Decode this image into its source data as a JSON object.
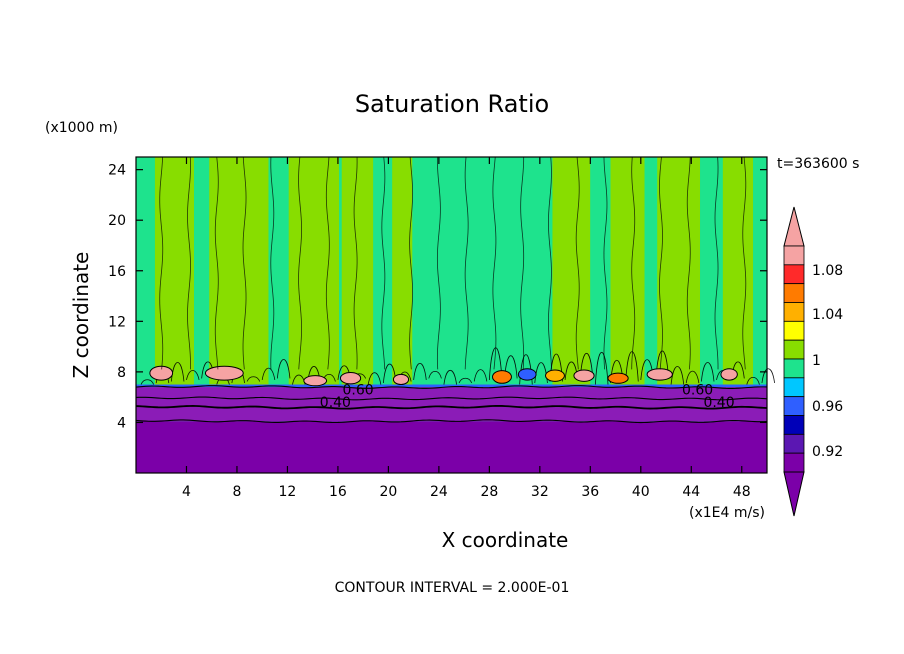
{
  "chart_data": {
    "type": "contour",
    "title": "Saturation Ratio",
    "xlabel": "X coordinate",
    "ylabel": "Z coordinate",
    "x_unit": "(x1E4 m/s)",
    "y_unit": "(x1000 m)",
    "time_label": "t=363600 s",
    "contour_interval_label": "CONTOUR INTERVAL = 2.000E-01",
    "xlim": [
      0,
      50
    ],
    "ylim": [
      0,
      25
    ],
    "xticks": [
      4,
      8,
      12,
      16,
      20,
      24,
      28,
      32,
      36,
      40,
      44,
      48
    ],
    "yticks": [
      4,
      8,
      12,
      16,
      20,
      24
    ],
    "legend": {
      "labels": [
        "1.08",
        "1.04",
        "1",
        "0.96",
        "0.92"
      ],
      "colors": [
        "#f5a3a3",
        "#ff2a2a",
        "#ff7b00",
        "#ffb000",
        "#ffff00",
        "#88dd00",
        "#1ee38d",
        "#00c7ff",
        "#2f5fff",
        "#0000b8",
        "#5b17b2",
        "#7b00a8"
      ]
    },
    "contour_labels": [
      {
        "text": "0.60",
        "x": 17.6,
        "y": 6.6
      },
      {
        "text": "0.40",
        "x": 15.8,
        "y": 5.6
      },
      {
        "text": "0.60",
        "x": 44.5,
        "y": 6.6
      },
      {
        "text": "0.40",
        "x": 46.2,
        "y": 5.6
      }
    ],
    "vertical_bands": [
      {
        "x0": 0.0,
        "x1": 1.5,
        "color": "#1ee38d"
      },
      {
        "x0": 1.5,
        "x1": 4.6,
        "color": "#88dd00"
      },
      {
        "x0": 4.6,
        "x1": 5.8,
        "color": "#1ee38d"
      },
      {
        "x0": 5.8,
        "x1": 10.5,
        "color": "#88dd00"
      },
      {
        "x0": 10.5,
        "x1": 12.1,
        "color": "#1ee38d"
      },
      {
        "x0": 12.1,
        "x1": 16.1,
        "color": "#88dd00"
      },
      {
        "x0": 16.1,
        "x1": 16.3,
        "color": "#1ee38d"
      },
      {
        "x0": 16.3,
        "x1": 18.8,
        "color": "#88dd00"
      },
      {
        "x0": 18.8,
        "x1": 20.3,
        "color": "#1ee38d"
      },
      {
        "x0": 20.3,
        "x1": 21.9,
        "color": "#88dd00"
      },
      {
        "x0": 21.9,
        "x1": 33.0,
        "color": "#1ee38d"
      },
      {
        "x0": 33.0,
        "x1": 36.0,
        "color": "#88dd00"
      },
      {
        "x0": 36.0,
        "x1": 37.6,
        "color": "#1ee38d"
      },
      {
        "x0": 37.6,
        "x1": 40.3,
        "color": "#88dd00"
      },
      {
        "x0": 40.3,
        "x1": 41.3,
        "color": "#1ee38d"
      },
      {
        "x0": 41.3,
        "x1": 44.7,
        "color": "#88dd00"
      },
      {
        "x0": 44.7,
        "x1": 46.5,
        "color": "#1ee38d"
      },
      {
        "x0": 46.5,
        "x1": 48.9,
        "color": "#88dd00"
      },
      {
        "x0": 48.9,
        "x1": 50.0,
        "color": "#1ee38d"
      }
    ],
    "layers": [
      {
        "z0": 0.0,
        "z1": 4.1,
        "color": "#7b00a8"
      },
      {
        "z0": 4.1,
        "z1": 6.8,
        "color": "#8b1cb7"
      },
      {
        "z0": 6.8,
        "z1": 7.0,
        "color": "#2f5fff"
      }
    ],
    "blobs": [
      {
        "x": 2.0,
        "y": 7.9,
        "w": 1.8,
        "h": 1.1,
        "color": "#f5a3a3"
      },
      {
        "x": 7.0,
        "y": 7.9,
        "w": 3.0,
        "h": 1.1,
        "color": "#f5a3a3"
      },
      {
        "x": 14.2,
        "y": 7.3,
        "w": 1.8,
        "h": 0.8,
        "color": "#f5a3a3"
      },
      {
        "x": 17.0,
        "y": 7.5,
        "w": 1.6,
        "h": 0.9,
        "color": "#f5a3a3"
      },
      {
        "x": 21.0,
        "y": 7.4,
        "w": 1.2,
        "h": 0.8,
        "color": "#f5a3a3"
      },
      {
        "x": 29.0,
        "y": 7.6,
        "w": 1.5,
        "h": 1.0,
        "color": "#ff7b00"
      },
      {
        "x": 31.0,
        "y": 7.8,
        "w": 1.4,
        "h": 0.9,
        "color": "#2f5fff"
      },
      {
        "x": 33.2,
        "y": 7.7,
        "w": 1.5,
        "h": 0.9,
        "color": "#ffb000"
      },
      {
        "x": 35.5,
        "y": 7.7,
        "w": 1.6,
        "h": 0.9,
        "color": "#f5a3a3"
      },
      {
        "x": 38.2,
        "y": 7.5,
        "w": 1.6,
        "h": 0.8,
        "color": "#ff7b00"
      },
      {
        "x": 41.5,
        "y": 7.8,
        "w": 2.0,
        "h": 0.9,
        "color": "#f5a3a3"
      },
      {
        "x": 47.0,
        "y": 7.8,
        "w": 1.3,
        "h": 0.9,
        "color": "#f5a3a3"
      }
    ]
  }
}
